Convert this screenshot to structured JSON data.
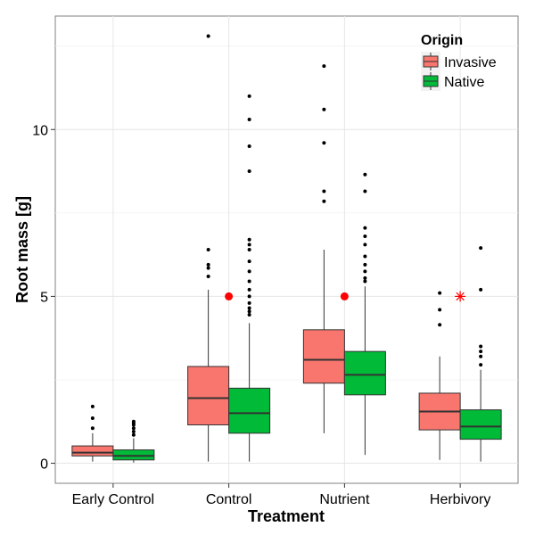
{
  "chart_data": {
    "type": "boxplot",
    "title": "",
    "xlabel": "Treatment",
    "ylabel": "Root mass [g]",
    "ylim": [
      -0.6,
      13.4
    ],
    "y_ticks": [
      0,
      5,
      10
    ],
    "y_tick_labels": [
      "0",
      "5",
      "10"
    ],
    "categories": [
      "Early Control",
      "Control",
      "Nutrient",
      "Herbivory"
    ],
    "grid": true,
    "legend": {
      "title": "Origin",
      "placement": "top-right",
      "entries": [
        "Invasive",
        "Native"
      ]
    },
    "series": [
      {
        "name": "Invasive",
        "color": "#F8766D",
        "boxes": [
          {
            "min": 0.05,
            "q1": 0.22,
            "median": 0.32,
            "q3": 0.52,
            "max": 0.9,
            "outliers": [
              1.05,
              1.35,
              1.7
            ]
          },
          {
            "min": 0.05,
            "q1": 1.15,
            "median": 1.95,
            "q3": 2.9,
            "max": 5.2,
            "outliers": [
              5.6,
              5.85,
              5.95,
              6.4,
              12.8
            ]
          },
          {
            "min": 0.9,
            "q1": 2.4,
            "median": 3.1,
            "q3": 4.0,
            "max": 6.4,
            "outliers": [
              7.85,
              8.15,
              9.6,
              10.6,
              11.9
            ]
          },
          {
            "min": 0.1,
            "q1": 1.0,
            "median": 1.55,
            "q3": 2.1,
            "max": 3.2,
            "outliers": [
              4.15,
              4.6,
              5.1
            ]
          }
        ]
      },
      {
        "name": "Native",
        "color": "#00BA38",
        "boxes": [
          {
            "min": 0.02,
            "q1": 0.1,
            "median": 0.22,
            "q3": 0.4,
            "max": 0.75,
            "outliers": [
              0.85,
              0.95,
              1.05,
              1.15,
              1.2,
              1.25
            ]
          },
          {
            "min": 0.05,
            "q1": 0.9,
            "median": 1.5,
            "q3": 2.25,
            "max": 4.2,
            "outliers": [
              4.45,
              4.55,
              4.65,
              4.8,
              5.0,
              5.2,
              5.45,
              5.75,
              6.05,
              6.4,
              6.55,
              6.7,
              8.75,
              9.5,
              10.3,
              11.0
            ]
          },
          {
            "min": 0.25,
            "q1": 2.05,
            "median": 2.65,
            "q3": 3.35,
            "max": 5.3,
            "outliers": [
              5.45,
              5.55,
              5.75,
              5.95,
              6.2,
              6.55,
              6.8,
              7.05,
              8.15,
              8.65
            ]
          },
          {
            "min": 0.05,
            "q1": 0.72,
            "median": 1.1,
            "q3": 1.6,
            "max": 2.8,
            "outliers": [
              2.95,
              3.2,
              3.35,
              3.5,
              5.2,
              6.45
            ]
          }
        ]
      }
    ],
    "annotations": [
      {
        "category": "Control",
        "y": 5,
        "marker": "dot",
        "color": "#FF0000"
      },
      {
        "category": "Nutrient",
        "y": 5,
        "marker": "dot",
        "color": "#FF0000"
      },
      {
        "category": "Herbivory",
        "y": 5,
        "marker": "asterisk",
        "color": "#FF0000"
      }
    ]
  }
}
